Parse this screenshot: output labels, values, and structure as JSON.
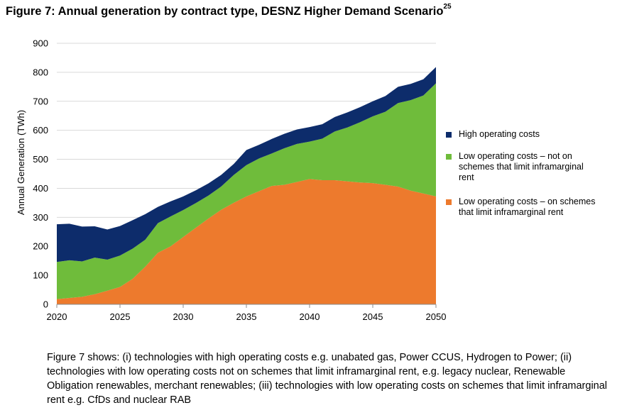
{
  "title": {
    "text": "Figure 7: Annual generation by contract type, DESNZ Higher Demand Scenario",
    "footnote": "25"
  },
  "caption": "Figure 7 shows: (i) technologies with high operating costs e.g. unabated gas, Power CCUS, Hydrogen to Power; (ii) technologies with low operating costs not on schemes that limit inframarginal rent, e.g. legacy nuclear, Renewable Obligation renewables, merchant renewables; (iii) technologies with low operating costs on schemes that limit inframarginal rent e.g. CfDs and nuclear RAB",
  "chart_data": {
    "type": "area",
    "stacked": true,
    "ylabel": "Annual Generation (TWh)",
    "xlabel": "",
    "ylim": [
      0,
      900
    ],
    "xlim": [
      2020,
      2050
    ],
    "yticks": [
      0,
      100,
      200,
      300,
      400,
      500,
      600,
      700,
      800,
      900
    ],
    "xticks": [
      2020,
      2025,
      2030,
      2035,
      2040,
      2045,
      2050
    ],
    "grid": "horizontal",
    "legend_position": "right",
    "x": [
      2020,
      2021,
      2022,
      2023,
      2024,
      2025,
      2026,
      2027,
      2028,
      2029,
      2030,
      2031,
      2032,
      2033,
      2034,
      2035,
      2036,
      2037,
      2038,
      2039,
      2040,
      2041,
      2042,
      2043,
      2044,
      2045,
      2046,
      2047,
      2048,
      2049,
      2050
    ],
    "series": [
      {
        "name": "Low operating costs – on schemes that limit inframarginal rent",
        "color": "#ed7a2d",
        "values": [
          18,
          22,
          26,
          35,
          47,
          60,
          88,
          130,
          178,
          200,
          232,
          264,
          296,
          326,
          350,
          372,
          390,
          408,
          412,
          422,
          432,
          428,
          428,
          424,
          420,
          418,
          412,
          406,
          392,
          382,
          372
        ]
      },
      {
        "name": "Low operating costs – not on schemes that limit inframarginal rent",
        "color": "#6fbc3b",
        "values": [
          128,
          130,
          122,
          126,
          107,
          108,
          104,
          93,
          102,
          103,
          93,
          85,
          79,
          80,
          96,
          108,
          113,
          112,
          126,
          131,
          129,
          143,
          168,
          186,
          208,
          230,
          252,
          288,
          312,
          338,
          390
        ]
      },
      {
        "name": "High operating costs",
        "color": "#0d2c6b",
        "values": [
          130,
          126,
          120,
          108,
          104,
          102,
          98,
          88,
          56,
          52,
          47,
          44,
          42,
          40,
          38,
          52,
          47,
          50,
          50,
          50,
          50,
          50,
          50,
          52,
          52,
          52,
          54,
          56,
          56,
          56,
          56
        ]
      }
    ]
  },
  "legend": {
    "items": [
      {
        "label": "High operating costs",
        "color": "#0d2c6b"
      },
      {
        "label": "Low operating costs – not on schemes that limit inframarginal rent",
        "color": "#6fbc3b"
      },
      {
        "label": "Low operating costs – on schemes that limit inframarginal rent",
        "color": "#ed7a2d"
      }
    ]
  }
}
